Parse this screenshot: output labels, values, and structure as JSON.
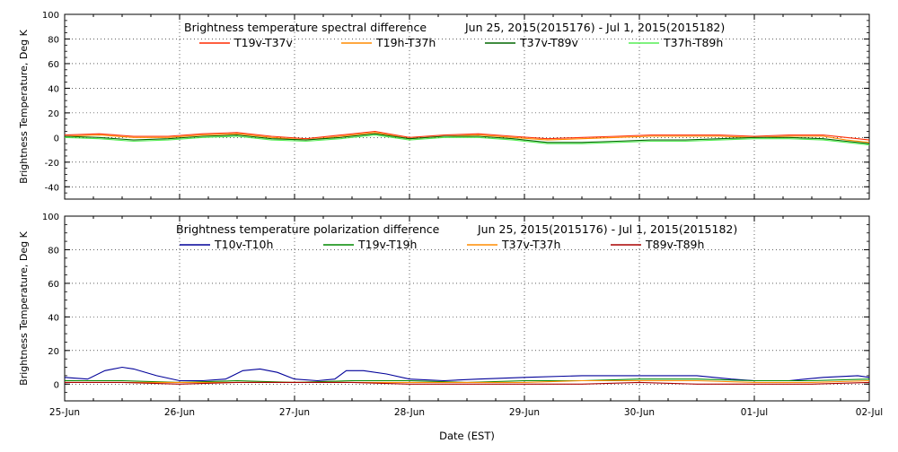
{
  "x_axis": {
    "label": "Date (EST)",
    "ticks": [
      "25-Jun",
      "26-Jun",
      "27-Jun",
      "28-Jun",
      "29-Jun",
      "30-Jun",
      "01-Jul",
      "02-Jul"
    ],
    "range": [
      0,
      7
    ]
  },
  "chart_data": [
    {
      "type": "line",
      "title": "Brightness temperature spectral difference",
      "date_range": "Jun 25, 2015(2015176) - Jul  1, 2015(2015182)",
      "xlabel": "Date (EST)",
      "ylabel": "Brightness Temperature, Deg K",
      "ylim": [
        -50,
        100
      ],
      "yticks": [
        -40,
        -20,
        0,
        20,
        40,
        60,
        80,
        100
      ],
      "grid": true,
      "series": [
        {
          "name": "T19v-T37v",
          "color": "#ff2a00",
          "x": [
            0,
            0.3,
            0.6,
            0.9,
            1.2,
            1.5,
            1.8,
            2.1,
            2.4,
            2.7,
            3.0,
            3.3,
            3.6,
            3.9,
            4.2,
            4.5,
            4.8,
            5.1,
            5.4,
            5.7,
            6.0,
            6.3,
            6.6,
            6.8,
            7.0
          ],
          "y": [
            2,
            3,
            1,
            1,
            3,
            4,
            1,
            -1,
            2,
            5,
            0,
            2,
            3,
            1,
            -1,
            0,
            1,
            2,
            2,
            2,
            1,
            2,
            2,
            0,
            -2
          ]
        },
        {
          "name": "T19h-T37h",
          "color": "#ff8c00",
          "x": [
            0,
            0.3,
            0.6,
            0.9,
            1.2,
            1.5,
            1.8,
            2.1,
            2.4,
            2.7,
            3.0,
            3.3,
            3.6,
            3.9,
            4.2,
            4.5,
            4.8,
            5.1,
            5.4,
            5.7,
            6.0,
            6.3,
            6.6,
            6.8,
            7.0
          ],
          "y": [
            1,
            2,
            0,
            0,
            2,
            3,
            0,
            -2,
            1,
            4,
            -1,
            1,
            2,
            0,
            -2,
            -1,
            0,
            1,
            1,
            1,
            0,
            1,
            1,
            -2,
            -4
          ]
        },
        {
          "name": "T37v-T89v",
          "color": "#006600",
          "x": [
            0,
            0.3,
            0.6,
            0.9,
            1.2,
            1.5,
            1.8,
            2.1,
            2.4,
            2.7,
            3.0,
            3.3,
            3.6,
            3.9,
            4.2,
            4.5,
            4.8,
            5.1,
            5.4,
            5.7,
            6.0,
            6.3,
            6.6,
            6.8,
            7.0
          ],
          "y": [
            1,
            0,
            -2,
            -1,
            1,
            2,
            -1,
            -2,
            0,
            3,
            -1,
            1,
            1,
            -1,
            -4,
            -4,
            -3,
            -2,
            -2,
            -1,
            0,
            0,
            -1,
            -3,
            -5
          ]
        },
        {
          "name": "T37h-T89h",
          "color": "#55ee55",
          "x": [
            0,
            0.3,
            0.6,
            0.9,
            1.2,
            1.5,
            1.8,
            2.1,
            2.4,
            2.7,
            3.0,
            3.3,
            3.6,
            3.9,
            4.2,
            4.5,
            4.8,
            5.1,
            5.4,
            5.7,
            6.0,
            6.3,
            6.6,
            6.8,
            7.0
          ],
          "y": [
            0,
            -1,
            -3,
            -2,
            0,
            1,
            -2,
            -3,
            -1,
            2,
            -2,
            0,
            0,
            -2,
            -5,
            -5,
            -4,
            -3,
            -3,
            -2,
            -1,
            -1,
            -2,
            -4,
            -6
          ]
        }
      ]
    },
    {
      "type": "line",
      "title": "Brightness temperature polarization difference",
      "date_range": "Jun 25, 2015(2015176) - Jul  1, 2015(2015182)",
      "xlabel": "Date (EST)",
      "ylabel": "Brightness Temperature, Deg K",
      "ylim": [
        -10,
        100
      ],
      "yticks": [
        0,
        20,
        40,
        60,
        80,
        100
      ],
      "grid": true,
      "series": [
        {
          "name": "T10v-T10h",
          "color": "#000099",
          "x": [
            0,
            0.2,
            0.35,
            0.5,
            0.6,
            0.8,
            1.0,
            1.2,
            1.4,
            1.55,
            1.7,
            1.85,
            2.0,
            2.2,
            2.35,
            2.45,
            2.6,
            2.8,
            3.0,
            3.3,
            3.6,
            4.0,
            4.5,
            5.0,
            5.5,
            5.8,
            6.0,
            6.3,
            6.6,
            6.9,
            7.0
          ],
          "y": [
            4,
            3,
            8,
            10,
            9,
            5,
            2,
            2,
            3,
            8,
            9,
            7,
            3,
            2,
            3,
            8,
            8,
            6,
            3,
            2,
            3,
            4,
            5,
            5,
            5,
            3,
            2,
            2,
            4,
            5,
            4
          ]
        },
        {
          "name": "T19v-T19h",
          "color": "#008800",
          "x": [
            0,
            0.5,
            1.0,
            1.5,
            2.0,
            2.5,
            3.0,
            3.5,
            4.0,
            4.5,
            5.0,
            5.5,
            6.0,
            6.5,
            7.0
          ],
          "y": [
            2,
            2,
            1,
            2,
            1,
            2,
            2,
            1,
            2,
            2,
            3,
            3,
            2,
            2,
            3
          ]
        },
        {
          "name": "T37v-T37h",
          "color": "#ff8c00",
          "x": [
            0,
            0.5,
            1.0,
            1.5,
            2.0,
            2.5,
            3.0,
            3.5,
            4.0,
            4.5,
            5.0,
            5.5,
            6.0,
            6.5,
            7.0
          ],
          "y": [
            1,
            1,
            1,
            1,
            1,
            1,
            1,
            1,
            1,
            2,
            2,
            2,
            1,
            1,
            2
          ]
        },
        {
          "name": "T89v-T89h",
          "color": "#aa0000",
          "x": [
            0,
            0.5,
            1.0,
            1.5,
            2.0,
            2.5,
            3.0,
            3.5,
            4.0,
            4.5,
            5.0,
            5.5,
            6.0,
            6.5,
            7.0
          ],
          "y": [
            1,
            1,
            0,
            1,
            1,
            1,
            0,
            0,
            0,
            0,
            1,
            0,
            0,
            0,
            1
          ]
        }
      ]
    }
  ]
}
